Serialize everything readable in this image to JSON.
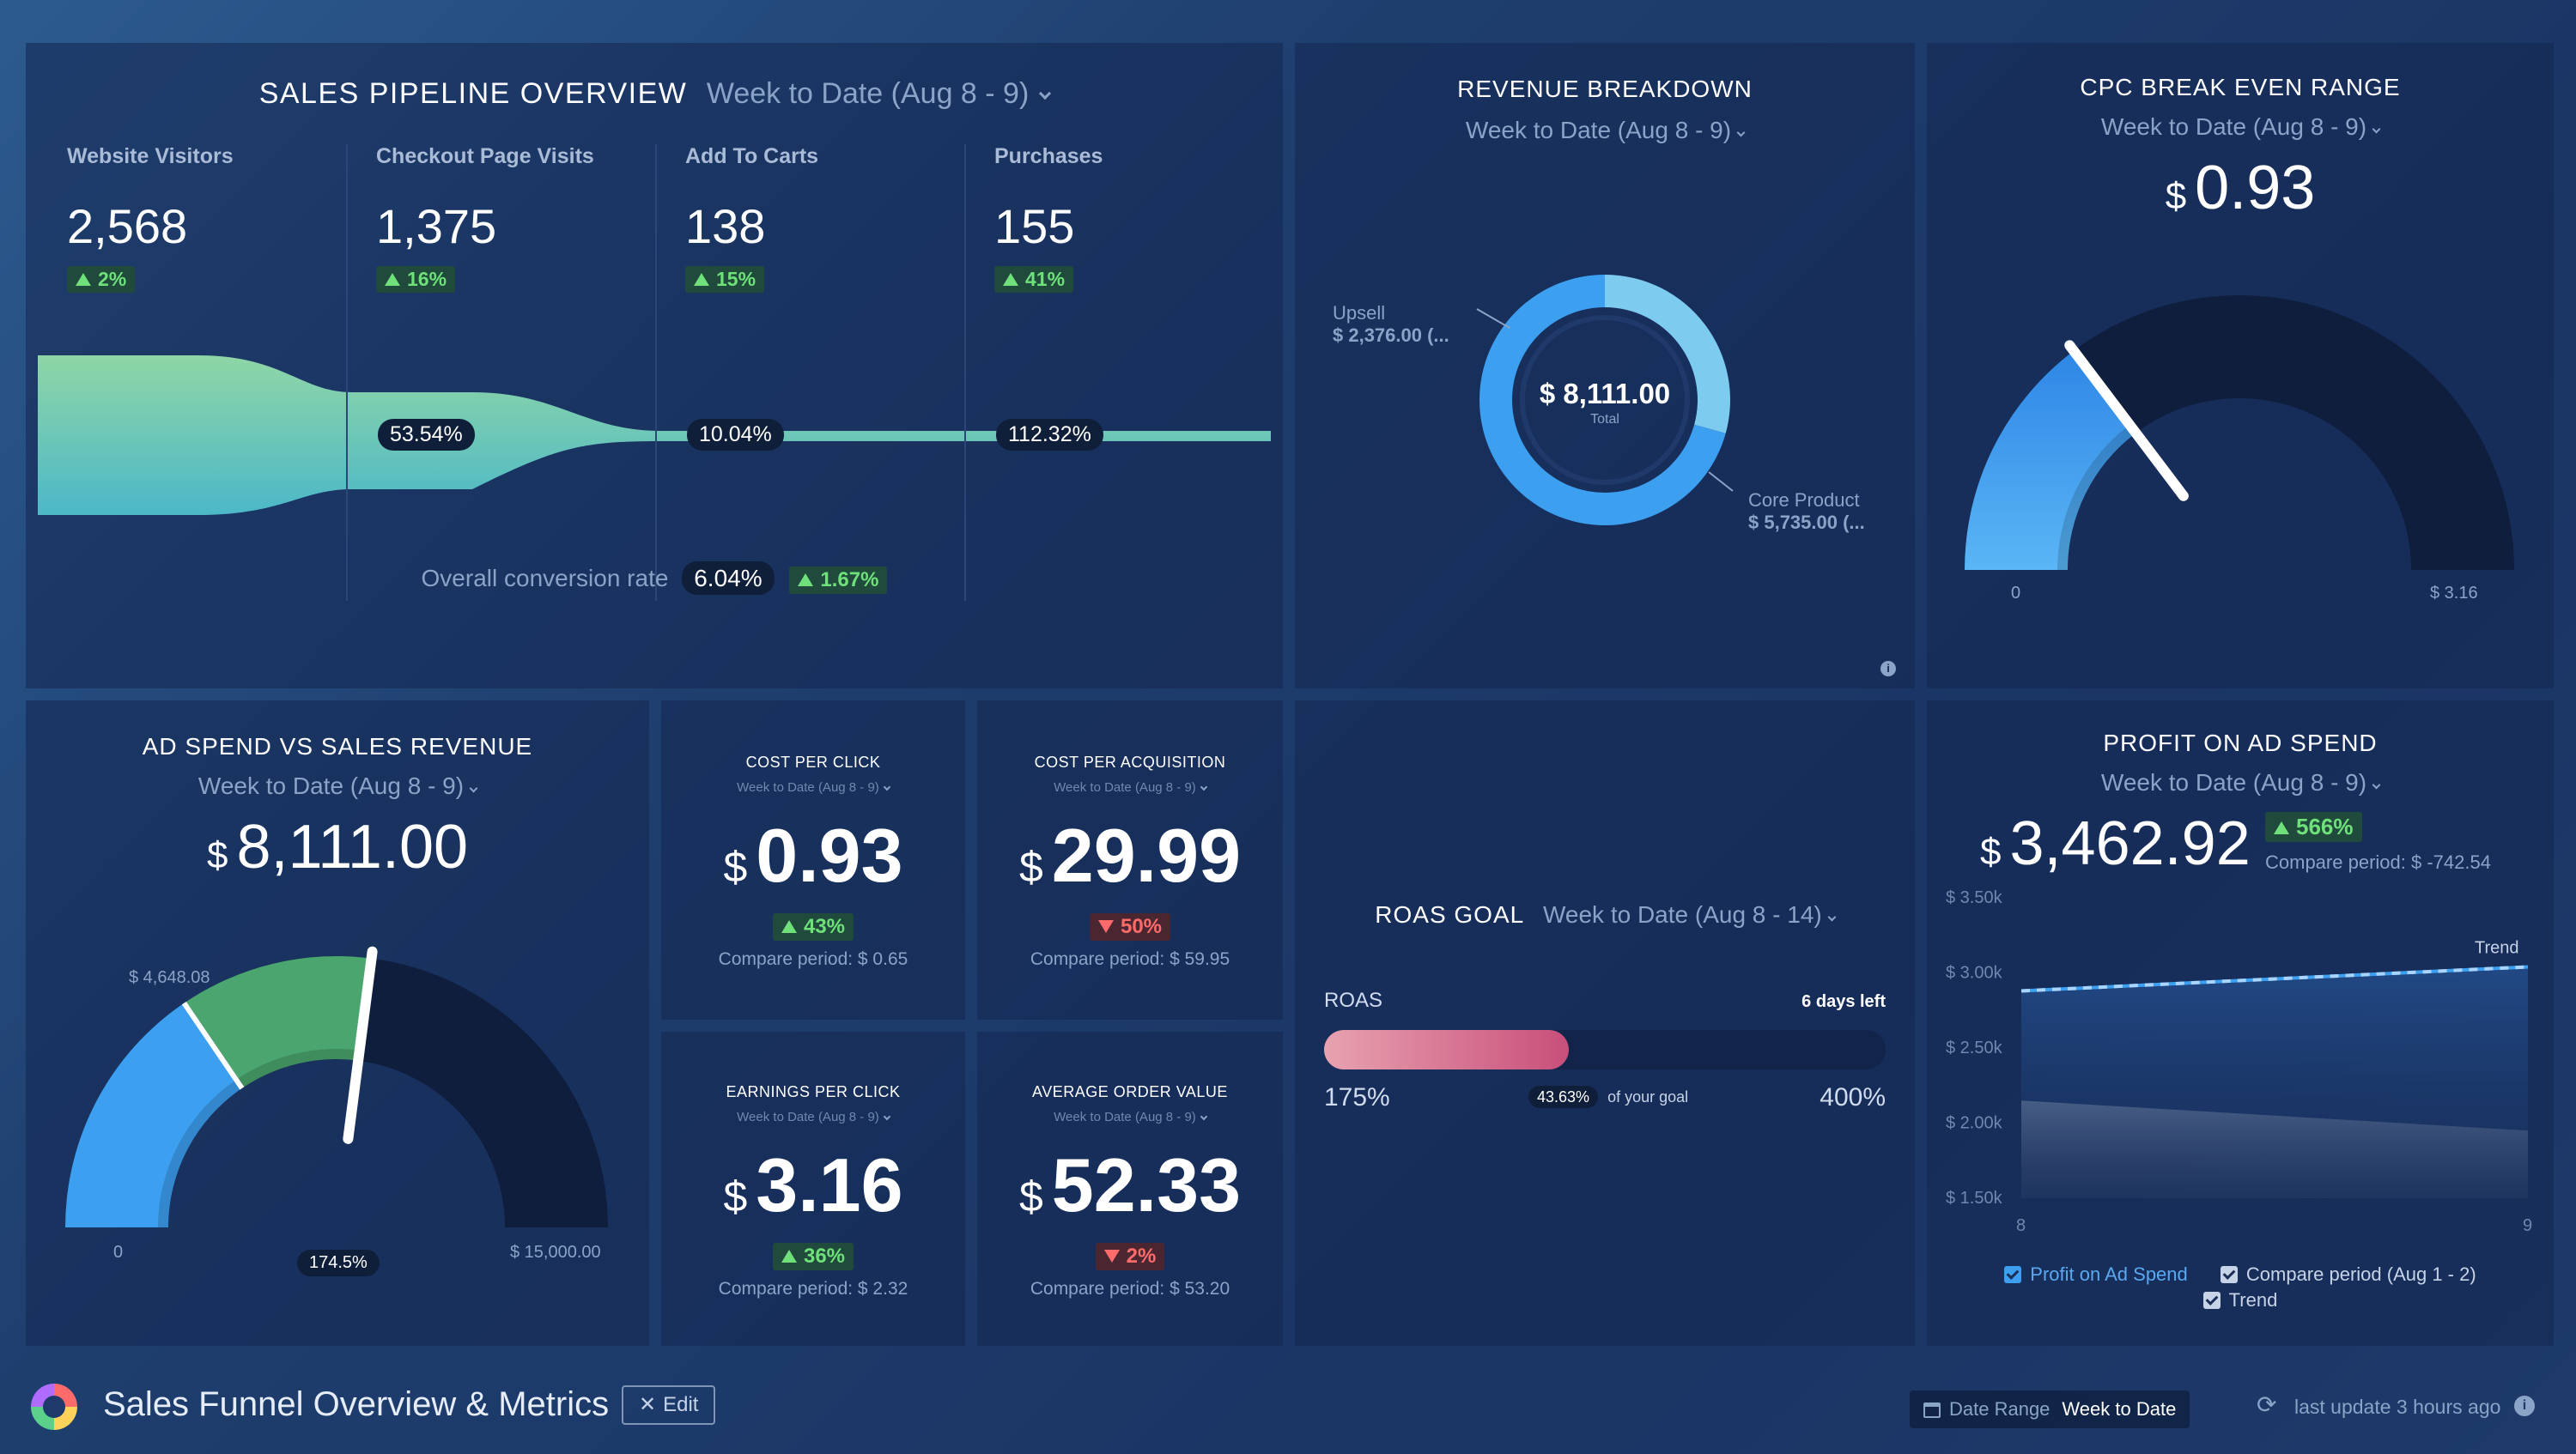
{
  "pipeline": {
    "title": "SALES PIPELINE OVERVIEW",
    "range": "Week to Date (Aug 8 - 9)",
    "stages": [
      {
        "label": "Website Visitors",
        "value": "2,568",
        "delta": "2%"
      },
      {
        "label": "Checkout Page Visits",
        "value": "1,375",
        "delta": "16%"
      },
      {
        "label": "Add To Carts",
        "value": "138",
        "delta": "15%"
      },
      {
        "label": "Purchases",
        "value": "155",
        "delta": "41%"
      }
    ],
    "conversions": [
      "53.54%",
      "10.04%",
      "112.32%"
    ],
    "overall_label": "Overall conversion rate",
    "overall_value": "6.04%",
    "overall_delta": "1.67%"
  },
  "revenue": {
    "title": "REVENUE BREAKDOWN",
    "range": "Week to Date (Aug 8 - 9)",
    "total": "$ 8,111.00",
    "total_label": "Total",
    "slices": [
      {
        "name": "Upsell",
        "value": "$ 2,376.00 (...",
        "amount": 2376,
        "color": "#7ecbf0"
      },
      {
        "name": "Core Product",
        "value": "$ 5,735.00 (...",
        "amount": 5735,
        "color": "#3c9ff0"
      }
    ],
    "info_icon": "info-icon"
  },
  "cpc_even": {
    "title": "CPC BREAK EVEN RANGE",
    "range": "Week to Date (Aug 8 - 9)",
    "currency": "$",
    "value": "0.93",
    "min_label": "0",
    "max_label": "$ 3.16",
    "fill_fraction": 0.294
  },
  "adspend": {
    "title": "AD SPEND VS SALES REVENUE",
    "range": "Week to Date (Aug 8 - 9)",
    "currency": "$",
    "value": "8,111.00",
    "target_label": "$ 4,648.08",
    "min_label": "0",
    "max_label": "$ 15,000.00",
    "pct_label": "174.5%",
    "fill_fraction": 0.541,
    "target_fraction": 0.31
  },
  "kpis": [
    {
      "title": "COST PER CLICK",
      "range": "Week to Date (Aug 8 - 9)",
      "currency": "$",
      "value": "0.93",
      "delta": "43%",
      "direction": "up",
      "compare": "Compare period: $ 0.65"
    },
    {
      "title": "COST PER ACQUISITION",
      "range": "Week to Date (Aug 8 - 9)",
      "currency": "$",
      "value": "29.99",
      "delta": "50%",
      "direction": "down",
      "compare": "Compare period: $ 59.95"
    },
    {
      "title": "EARNINGS PER CLICK",
      "range": "Week to Date (Aug 8 - 9)",
      "currency": "$",
      "value": "3.16",
      "delta": "36%",
      "direction": "up",
      "compare": "Compare period: $ 2.32"
    },
    {
      "title": "AVERAGE ORDER VALUE",
      "range": "Week to Date (Aug 8 - 9)",
      "currency": "$",
      "value": "52.33",
      "delta": "2%",
      "direction": "down",
      "compare": "Compare period: $ 53.20"
    }
  ],
  "roas": {
    "title": "ROAS GOAL",
    "range": "Week to Date (Aug 8 - 14)",
    "label": "ROAS",
    "days_left": "6 days left",
    "min": "175%",
    "max": "400%",
    "progress": "43.63%",
    "progress_fraction": 0.4363,
    "of_goal": "of your goal"
  },
  "poas": {
    "title": "PROFIT ON AD SPEND",
    "range": "Week to Date (Aug 8 - 9)",
    "currency": "$",
    "value": "3,462.92",
    "delta": "566%",
    "compare": "Compare period: $ -742.54",
    "trend_label": "Trend",
    "legend": [
      "Profit on Ad Spend",
      "Compare period (Aug 1 - 2)",
      "Trend"
    ]
  },
  "chart_data": {
    "type": "area",
    "x": [
      "8",
      "9"
    ],
    "yticks": [
      "$ 3.50k",
      "$ 3.00k",
      "$ 2.50k",
      "$ 2.00k",
      "$ 1.50k"
    ],
    "ylim": [
      1500,
      3500
    ],
    "series": [
      {
        "name": "Profit on Ad Spend",
        "values": [
          2880,
          3040
        ]
      },
      {
        "name": "Compare period (Aug 1 - 2)",
        "values": [
          2150,
          1950
        ]
      },
      {
        "name": "Trend",
        "values": [
          2880,
          3040
        ]
      }
    ]
  },
  "footer": {
    "title": "Sales Funnel Overview & Metrics",
    "edit": "Edit",
    "date_range_label": "Date Range",
    "date_range_value": "Week to Date",
    "last_update": "last update 3 hours ago"
  }
}
